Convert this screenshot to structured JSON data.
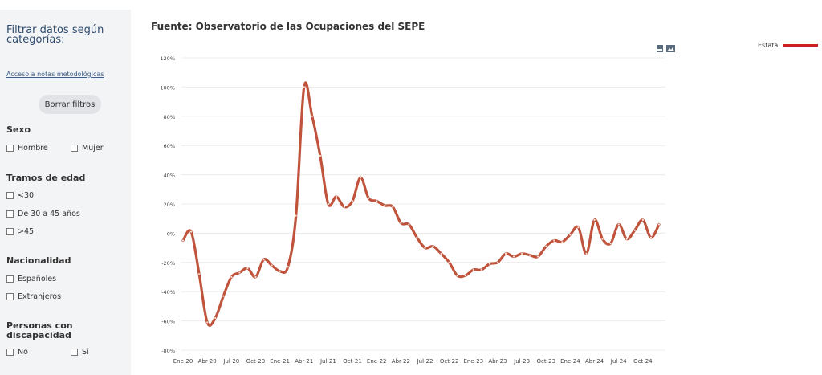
{
  "sidebar": {
    "title": "Filtrar datos según categorías:",
    "notes_link": "Acceso a notas metodológicas",
    "clear_button": "Borrar filtros",
    "sexo": {
      "heading": "Sexo",
      "options": [
        "Hombre",
        "Mujer"
      ]
    },
    "edad": {
      "heading": "Tramos de edad",
      "options": [
        "<30",
        "De 30 a 45 años",
        ">45"
      ]
    },
    "nacionalidad": {
      "heading": "Nacionalidad",
      "options": [
        "Españoles",
        "Extranjeros"
      ]
    },
    "discapacidad": {
      "heading": "Personas con discapacidad",
      "options": [
        "No",
        "Si"
      ]
    }
  },
  "toolbar": {
    "icons": [
      "pdf-icon",
      "image-icon"
    ]
  },
  "chart_data": {
    "type": "line",
    "title": "Fuente: Observatorio de las Ocupaciones del SEPE",
    "ylabel": "",
    "xlabel": "",
    "ylim": [
      -80,
      120
    ],
    "yticks": [
      "120%",
      "100%",
      "80%",
      "60%",
      "40%",
      "20%",
      "0%",
      "-20%",
      "-40%",
      "-60%",
      "-80%"
    ],
    "ytick_values": [
      120,
      100,
      80,
      60,
      40,
      20,
      0,
      -20,
      -40,
      -60,
      -80
    ],
    "x_tick_labels": [
      "Ene-20",
      "Abr-20",
      "Jul-20",
      "Oct-20",
      "Ene-21",
      "Abr-21",
      "Jul-21",
      "Oct-21",
      "Ene-22",
      "Abr-22",
      "Jul-22",
      "Oct-22",
      "Ene-23",
      "Abr-23",
      "Jul-23",
      "Oct-23",
      "Ene-24",
      "Abr-24",
      "Jul-24",
      "Oct-24"
    ],
    "grid": true,
    "legend_position": "top-right",
    "line_color": "#c0533b",
    "legend_color": "#cc1f1f",
    "series": [
      {
        "name": "Estatal",
        "x": [
          "Ene-20",
          "Feb-20",
          "Mar-20",
          "Abr-20",
          "May-20",
          "Jun-20",
          "Jul-20",
          "Ago-20",
          "Sep-20",
          "Oct-20",
          "Nov-20",
          "Dic-20",
          "Ene-21",
          "Feb-21",
          "Mar-21",
          "Abr-21",
          "May-21",
          "Jun-21",
          "Jul-21",
          "Ago-21",
          "Sep-21",
          "Oct-21",
          "Nov-21",
          "Dic-21",
          "Ene-22",
          "Feb-22",
          "Mar-22",
          "Abr-22",
          "May-22",
          "Jun-22",
          "Jul-22",
          "Ago-22",
          "Sep-22",
          "Oct-22",
          "Nov-22",
          "Dic-22",
          "Ene-23",
          "Feb-23",
          "Mar-23",
          "Abr-23",
          "May-23",
          "Jun-23",
          "Jul-23",
          "Ago-23",
          "Sep-23",
          "Oct-23",
          "Nov-23",
          "Dic-23",
          "Ene-24",
          "Feb-24",
          "Mar-24",
          "Abr-24",
          "May-24",
          "Jun-24",
          "Jul-24",
          "Ago-24",
          "Sep-24",
          "Oct-24",
          "Nov-24",
          "Dic-24"
        ],
        "values": [
          -5,
          1,
          -28,
          -61,
          -58,
          -43,
          -30,
          -27,
          -24,
          -30,
          -18,
          -22,
          -26,
          -23,
          12,
          100,
          80,
          53,
          20,
          25,
          18,
          22,
          38,
          24,
          22,
          19,
          18,
          7,
          6,
          -3,
          -10,
          -9,
          -14,
          -20,
          -29,
          -29,
          -25,
          -25,
          -21,
          -20,
          -14,
          -16,
          -14,
          -15,
          -16,
          -9,
          -5,
          -6,
          -1,
          4,
          -14,
          9,
          -4,
          -7,
          6,
          -4,
          2,
          9,
          -3,
          6
        ]
      }
    ]
  }
}
